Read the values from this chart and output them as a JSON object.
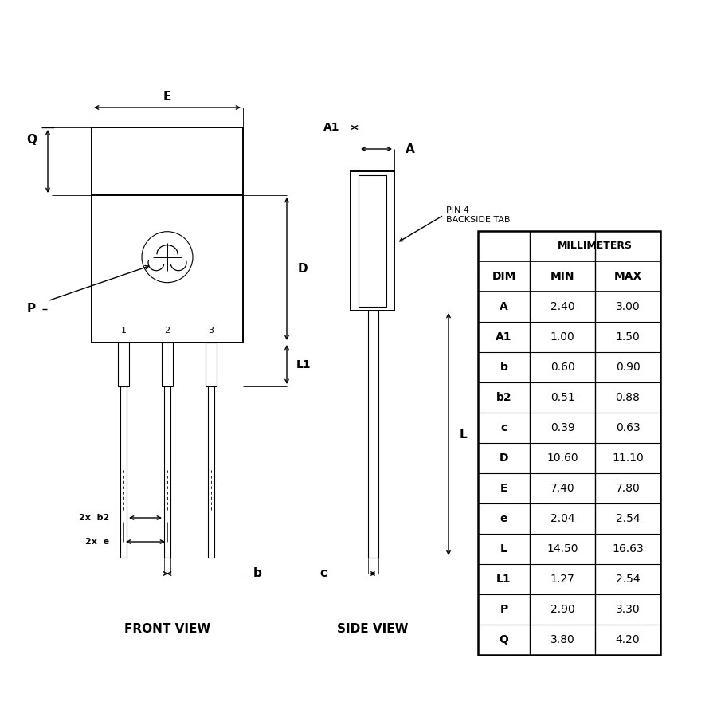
{
  "bg_color": "#FFFFFF",
  "line_color": "#000000",
  "table_data": {
    "dims": [
      "A",
      "A1",
      "b",
      "b2",
      "c",
      "D",
      "E",
      "e",
      "L",
      "L1",
      "P",
      "Q"
    ],
    "min": [
      2.4,
      1.0,
      0.6,
      0.51,
      0.39,
      10.6,
      7.4,
      2.04,
      14.5,
      1.27,
      2.9,
      3.8
    ],
    "max": [
      3.0,
      1.5,
      0.9,
      0.88,
      0.63,
      11.1,
      7.8,
      2.54,
      16.63,
      2.54,
      3.3,
      4.2
    ]
  },
  "front_view_label": "FRONT VIEW",
  "side_view_label": "SIDE VIEW",
  "millimeters_label": "MILLIMETERS",
  "dim_label": "DIM",
  "min_label": "MIN",
  "max_label": "MAX",
  "pin4_label": "PIN 4\nBACKSIDE TAB",
  "layout": {
    "fig_w": 9.0,
    "fig_h": 9.0,
    "dpi": 100
  }
}
